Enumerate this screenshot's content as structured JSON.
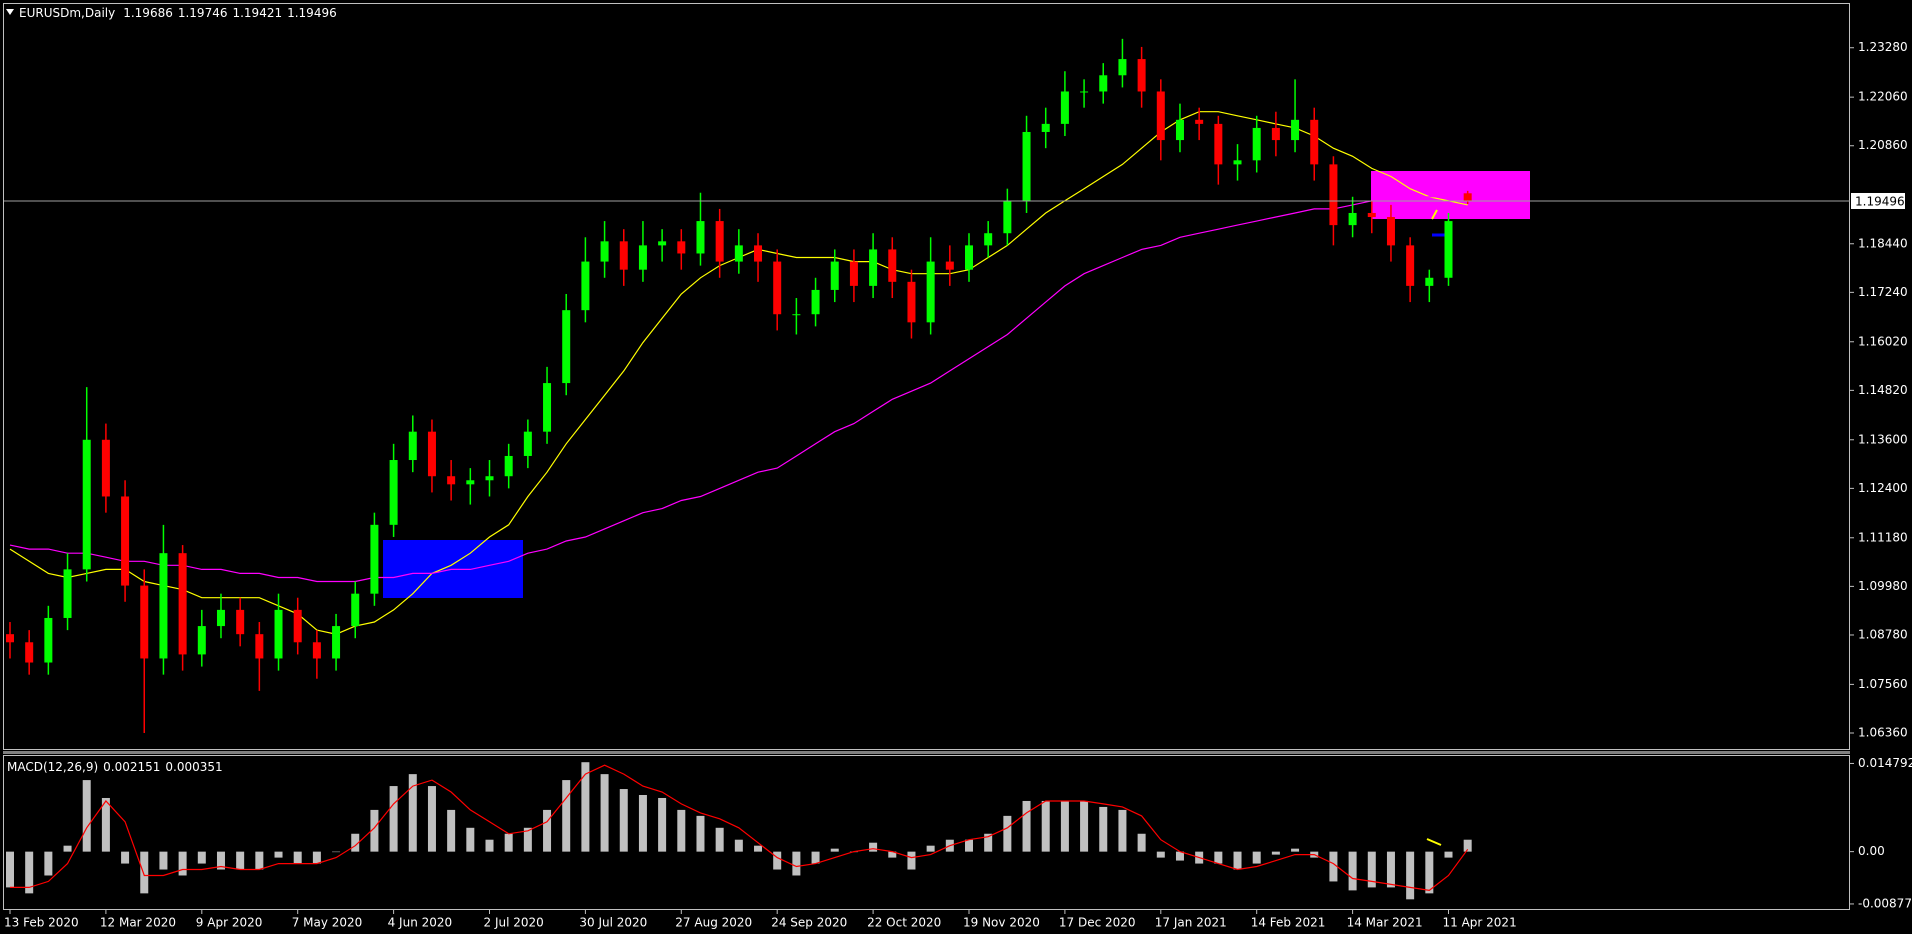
{
  "chart_data": [
    {
      "type": "candlestick",
      "symbol": "EURUSDm,Daily",
      "ohlc_header": [
        1.19686,
        1.19746,
        1.19421,
        1.19496
      ],
      "last_price": 1.19496,
      "categories": [
        "13 Feb 2020",
        null,
        null,
        null,
        null,
        "12 Mar 2020",
        null,
        null,
        null,
        null,
        "9 Apr 2020",
        null,
        null,
        null,
        null,
        "7 May 2020",
        null,
        null,
        null,
        null,
        "4 Jun 2020",
        null,
        null,
        null,
        null,
        "2 Jul 2020",
        null,
        null,
        null,
        null,
        "30 Jul 2020",
        null,
        null,
        null,
        null,
        "27 Aug 2020",
        null,
        null,
        null,
        null,
        "24 Sep 2020",
        null,
        null,
        null,
        null,
        "22 Oct 2020",
        null,
        null,
        null,
        null,
        "19 Nov 2020",
        null,
        null,
        null,
        null,
        "17 Dec 2020",
        null,
        null,
        null,
        null,
        "17 Jan 2021",
        null,
        null,
        null,
        null,
        "14 Feb 2021",
        null,
        null,
        null,
        null,
        "14 Mar 2021",
        null,
        null,
        null,
        null,
        "11 Apr 2021",
        null
      ],
      "open": [
        1.088,
        1.086,
        1.081,
        1.092,
        1.104,
        1.136,
        1.122,
        1.1,
        1.082,
        1.108,
        1.083,
        1.09,
        1.094,
        1.088,
        1.082,
        1.094,
        1.086,
        1.082,
        1.09,
        1.098,
        1.115,
        1.131,
        1.138,
        1.127,
        1.125,
        1.126,
        1.127,
        1.132,
        1.138,
        1.15,
        1.168,
        1.18,
        1.185,
        1.178,
        1.184,
        1.185,
        1.182,
        1.19,
        1.18,
        1.184,
        1.18,
        1.167,
        1.167,
        1.173,
        1.18,
        1.174,
        1.183,
        1.175,
        1.165,
        1.18,
        1.178,
        1.184,
        1.187,
        1.195,
        1.212,
        1.214,
        1.222,
        1.222,
        1.226,
        1.23,
        1.222,
        1.21,
        1.215,
        1.214,
        1.204,
        1.205,
        1.213,
        1.21,
        1.215,
        1.204,
        1.189,
        1.192,
        1.191,
        1.184,
        1.174,
        1.176,
        1.19686
      ],
      "high": [
        1.091,
        1.089,
        1.095,
        1.108,
        1.149,
        1.14,
        1.126,
        1.104,
        1.115,
        1.11,
        1.094,
        1.098,
        1.097,
        1.091,
        1.098,
        1.097,
        1.089,
        1.093,
        1.101,
        1.118,
        1.135,
        1.142,
        1.141,
        1.131,
        1.129,
        1.131,
        1.135,
        1.141,
        1.154,
        1.172,
        1.186,
        1.19,
        1.188,
        1.19,
        1.188,
        1.188,
        1.197,
        1.193,
        1.188,
        1.187,
        1.183,
        1.171,
        1.176,
        1.183,
        1.183,
        1.187,
        1.186,
        1.178,
        1.186,
        1.184,
        1.187,
        1.19,
        1.198,
        1.216,
        1.218,
        1.227,
        1.225,
        1.229,
        1.235,
        1.233,
        1.225,
        1.219,
        1.218,
        1.216,
        1.209,
        1.216,
        1.217,
        1.225,
        1.218,
        1.206,
        1.196,
        1.195,
        1.194,
        1.186,
        1.178,
        1.192,
        1.19746
      ],
      "low": [
        1.082,
        1.078,
        1.078,
        1.089,
        1.101,
        1.118,
        1.096,
        1.0636,
        1.078,
        1.079,
        1.08,
        1.087,
        1.085,
        1.074,
        1.079,
        1.083,
        1.077,
        1.079,
        1.087,
        1.095,
        1.112,
        1.128,
        1.123,
        1.121,
        1.12,
        1.122,
        1.124,
        1.129,
        1.135,
        1.147,
        1.165,
        1.176,
        1.174,
        1.175,
        1.18,
        1.178,
        1.179,
        1.176,
        1.177,
        1.175,
        1.163,
        1.162,
        1.164,
        1.17,
        1.17,
        1.171,
        1.171,
        1.161,
        1.162,
        1.174,
        1.175,
        1.181,
        1.184,
        1.192,
        1.208,
        1.211,
        1.218,
        1.219,
        1.223,
        1.218,
        1.205,
        1.207,
        1.21,
        1.199,
        1.2,
        1.202,
        1.206,
        1.207,
        1.2,
        1.184,
        1.186,
        1.187,
        1.18,
        1.17,
        1.17,
        1.174,
        1.19421
      ],
      "close": [
        1.086,
        1.081,
        1.092,
        1.104,
        1.136,
        1.122,
        1.1,
        1.082,
        1.108,
        1.083,
        1.09,
        1.094,
        1.088,
        1.082,
        1.094,
        1.086,
        1.082,
        1.09,
        1.098,
        1.115,
        1.131,
        1.138,
        1.127,
        1.125,
        1.126,
        1.127,
        1.132,
        1.138,
        1.15,
        1.168,
        1.18,
        1.185,
        1.178,
        1.184,
        1.185,
        1.182,
        1.19,
        1.18,
        1.184,
        1.18,
        1.167,
        1.167,
        1.173,
        1.18,
        1.174,
        1.183,
        1.175,
        1.165,
        1.18,
        1.178,
        1.184,
        1.187,
        1.195,
        1.212,
        1.214,
        1.222,
        1.222,
        1.226,
        1.23,
        1.222,
        1.21,
        1.215,
        1.214,
        1.204,
        1.205,
        1.213,
        1.21,
        1.215,
        1.204,
        1.189,
        1.192,
        1.191,
        1.184,
        1.174,
        1.176,
        1.19,
        1.19496
      ],
      "up_color": "#00ff00",
      "down_color": "#ff0000",
      "overlays": [
        {
          "color": "#ffff00",
          "values": [
            1.109,
            1.106,
            1.103,
            1.102,
            1.103,
            1.104,
            1.104,
            1.101,
            1.1,
            1.099,
            1.097,
            1.097,
            1.097,
            1.097,
            1.095,
            1.093,
            1.089,
            1.088,
            1.09,
            1.091,
            1.094,
            1.098,
            1.103,
            1.105,
            1.108,
            1.112,
            1.115,
            1.122,
            1.128,
            1.135,
            1.141,
            1.147,
            1.153,
            1.16,
            1.166,
            1.172,
            1.176,
            1.179,
            1.181,
            1.183,
            1.182,
            1.181,
            1.181,
            1.181,
            1.18,
            1.18,
            1.178,
            1.177,
            1.177,
            1.177,
            1.178,
            1.181,
            1.184,
            1.188,
            1.192,
            1.195,
            1.198,
            1.201,
            1.204,
            1.208,
            1.212,
            1.215,
            1.217,
            1.217,
            1.216,
            1.215,
            1.214,
            1.213,
            1.211,
            1.208,
            1.206,
            1.203,
            1.201,
            1.198,
            1.196,
            1.195,
            1.194
          ]
        },
        {
          "color": "#ff00ff",
          "values": [
            1.11,
            1.109,
            1.109,
            1.108,
            1.108,
            1.107,
            1.106,
            1.106,
            1.105,
            1.105,
            1.104,
            1.104,
            1.103,
            1.103,
            1.102,
            1.102,
            1.101,
            1.101,
            1.101,
            1.102,
            1.102,
            1.103,
            1.103,
            1.104,
            1.104,
            1.105,
            1.106,
            1.108,
            1.109,
            1.111,
            1.112,
            1.114,
            1.116,
            1.118,
            1.119,
            1.121,
            1.122,
            1.124,
            1.126,
            1.128,
            1.129,
            1.132,
            1.135,
            1.138,
            1.14,
            1.143,
            1.146,
            1.148,
            1.15,
            1.153,
            1.156,
            1.159,
            1.162,
            1.166,
            1.17,
            1.174,
            1.177,
            1.179,
            1.181,
            1.183,
            1.184,
            1.186,
            1.187,
            1.188,
            1.189,
            1.19,
            1.191,
            1.192,
            1.193,
            1.193,
            1.194,
            1.195,
            1.195,
            1.196,
            1.196,
            1.196,
            1.196
          ]
        }
      ],
      "ylim": [
        1.0594,
        1.2436
      ],
      "yticks": [
        {
          "value": 1.0636,
          "label": "1.06360"
        },
        {
          "value": 1.0756,
          "label": "1.07560"
        },
        {
          "value": 1.0878,
          "label": "1.08780"
        },
        {
          "value": 1.0998,
          "label": "1.09980"
        },
        {
          "value": 1.1118,
          "label": "1.11180"
        },
        {
          "value": 1.124,
          "label": "1.12400"
        },
        {
          "value": 1.136,
          "label": "1.13600"
        },
        {
          "value": 1.1482,
          "label": "1.14820"
        },
        {
          "value": 1.1602,
          "label": "1.16020"
        },
        {
          "value": 1.1724,
          "label": "1.17240"
        },
        {
          "value": 1.1844,
          "label": "1.18440"
        },
        {
          "value": 1.2086,
          "label": "1.20860"
        },
        {
          "value": 1.2206,
          "label": "1.22060"
        },
        {
          "value": 1.2328,
          "label": "1.23280"
        }
      ],
      "grid": false
    },
    {
      "type": "macd",
      "title": "MACD(12,26,9)",
      "readout": [
        0.002151,
        0.000351
      ],
      "histogram": {
        "color": "#c0c0c0",
        "values": [
          -0.006,
          -0.007,
          -0.004,
          0.001,
          0.012,
          0.009,
          -0.002,
          -0.007,
          -0.003,
          -0.004,
          -0.002,
          -0.003,
          -0.003,
          -0.003,
          -0.001,
          -0.002,
          -0.002,
          0,
          0.003,
          0.007,
          0.011,
          0.013,
          0.011,
          0.007,
          0.004,
          0.002,
          0.003,
          0.004,
          0.007,
          0.012,
          0.015,
          0.013,
          0.0105,
          0.0095,
          0.009,
          0.007,
          0.006,
          0.004,
          0.002,
          0.001,
          -0.003,
          -0.004,
          -0.002,
          0.0005,
          0,
          0.0015,
          -0.001,
          -0.003,
          0.001,
          0.002,
          0.002,
          0.003,
          0.006,
          0.0085,
          0.0085,
          0.0085,
          0.0085,
          0.0075,
          0.007,
          0.003,
          -0.001,
          -0.0015,
          -0.002,
          -0.002,
          -0.003,
          -0.002,
          -0.0005,
          0.0005,
          -0.001,
          -0.005,
          -0.0065,
          -0.006,
          -0.006,
          -0.008,
          -0.007,
          -0.001,
          0.002
        ]
      },
      "signal": {
        "color": "#ff0000",
        "values": [
          -0.006,
          -0.006,
          -0.005,
          -0.002,
          0.004,
          0.0085,
          0.005,
          -0.004,
          -0.004,
          -0.003,
          -0.003,
          -0.0025,
          -0.003,
          -0.003,
          -0.002,
          -0.002,
          -0.002,
          -0.001,
          0.001,
          0.004,
          0.008,
          0.011,
          0.012,
          0.01,
          0.007,
          0.005,
          0.003,
          0.0035,
          0.005,
          0.009,
          0.013,
          0.0145,
          0.013,
          0.011,
          0.01,
          0.008,
          0.0065,
          0.0055,
          0.004,
          0.0015,
          -0.001,
          -0.0025,
          -0.002,
          -0.001,
          0,
          0.0005,
          0,
          -0.001,
          -0.0005,
          0.001,
          0.002,
          0.0025,
          0.004,
          0.0065,
          0.0085,
          0.0085,
          0.0085,
          0.008,
          0.0075,
          0.006,
          0.002,
          0,
          -0.001,
          -0.002,
          -0.003,
          -0.0025,
          -0.0015,
          -0.0005,
          -0.0005,
          -0.002,
          -0.0045,
          -0.005,
          -0.0055,
          -0.006,
          -0.0065,
          -0.004,
          0.0004
        ]
      },
      "ylim": [
        -0.00979,
        0.01621
      ],
      "yticks": [
        0.014792,
        {
          "value": 0,
          "label": "0.00"
        },
        -0.008775
      ]
    }
  ]
}
